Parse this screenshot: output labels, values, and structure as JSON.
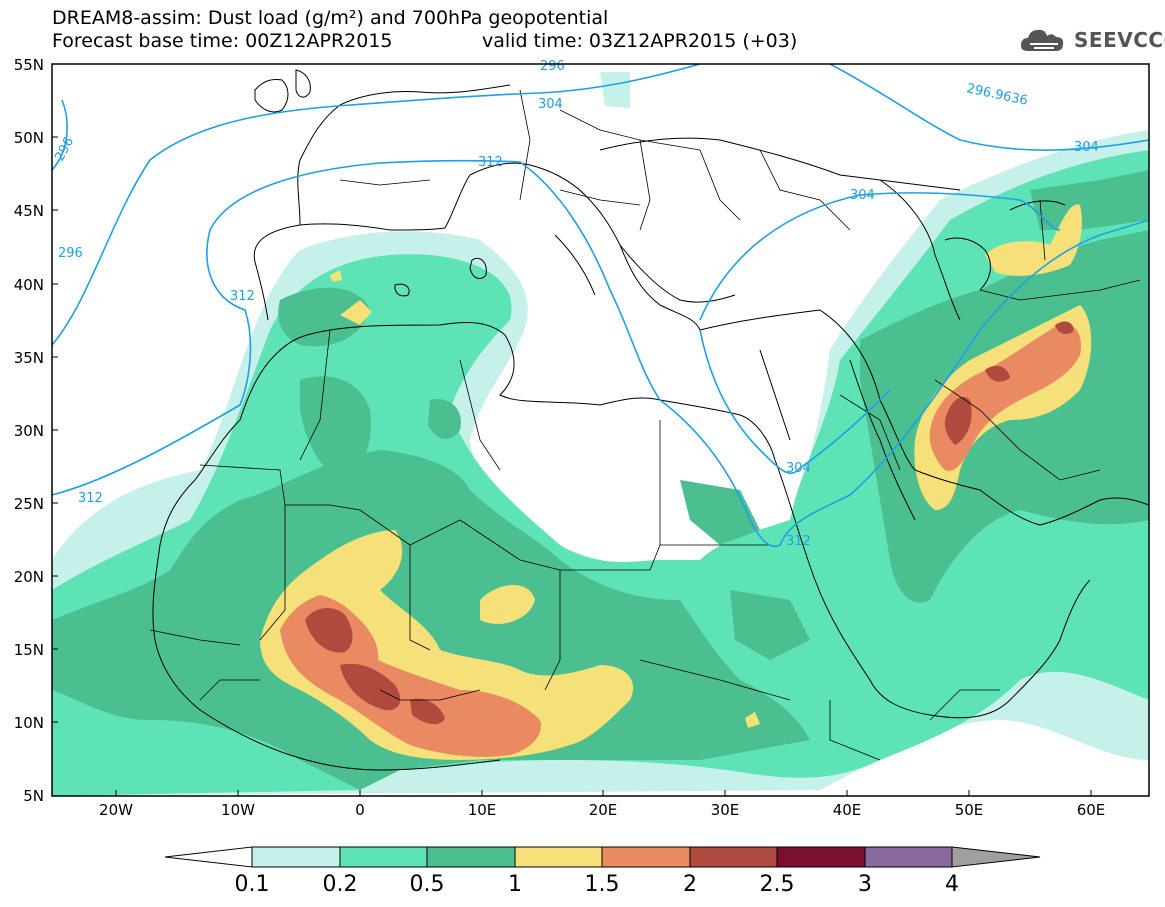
{
  "title": {
    "line1": "DREAM8-assim: Dust load (g/m²) and 700hPa geopotential",
    "line2_base": "Forecast base time: 00Z12APR2015",
    "line2_valid": "valid time: 03Z12APR2015 (+03)"
  },
  "logo": {
    "text": "SEEVCCC",
    "icon": "cloud-logo-icon"
  },
  "map": {
    "lat_labels": [
      "55N",
      "50N",
      "45N",
      "40N",
      "35N",
      "30N",
      "25N",
      "20N",
      "15N",
      "10N",
      "5N"
    ],
    "lon_labels": [
      "20W",
      "10W",
      "0",
      "10E",
      "20E",
      "30E",
      "40E",
      "50E",
      "60E"
    ],
    "contour_labels": [
      "296",
      "296",
      "304",
      "312",
      "296",
      "312",
      "312",
      "304",
      "296.9636",
      "304",
      "304",
      "312"
    ],
    "colors": {
      "contour": "#1ea0e6",
      "land_border": "#000000"
    }
  },
  "colorbar": {
    "labels": [
      "0.1",
      "0.2",
      "0.5",
      "1",
      "1.5",
      "2",
      "2.5",
      "3",
      "4"
    ],
    "colors": [
      "#c6f0ea",
      "#5ee3b6",
      "#4bbf8f",
      "#f5e07a",
      "#e98a62",
      "#b04a3e",
      "#7a1030",
      "#8a6a9e",
      "#a0a0a0"
    ],
    "left_triangle_color": "#ffffff"
  }
}
